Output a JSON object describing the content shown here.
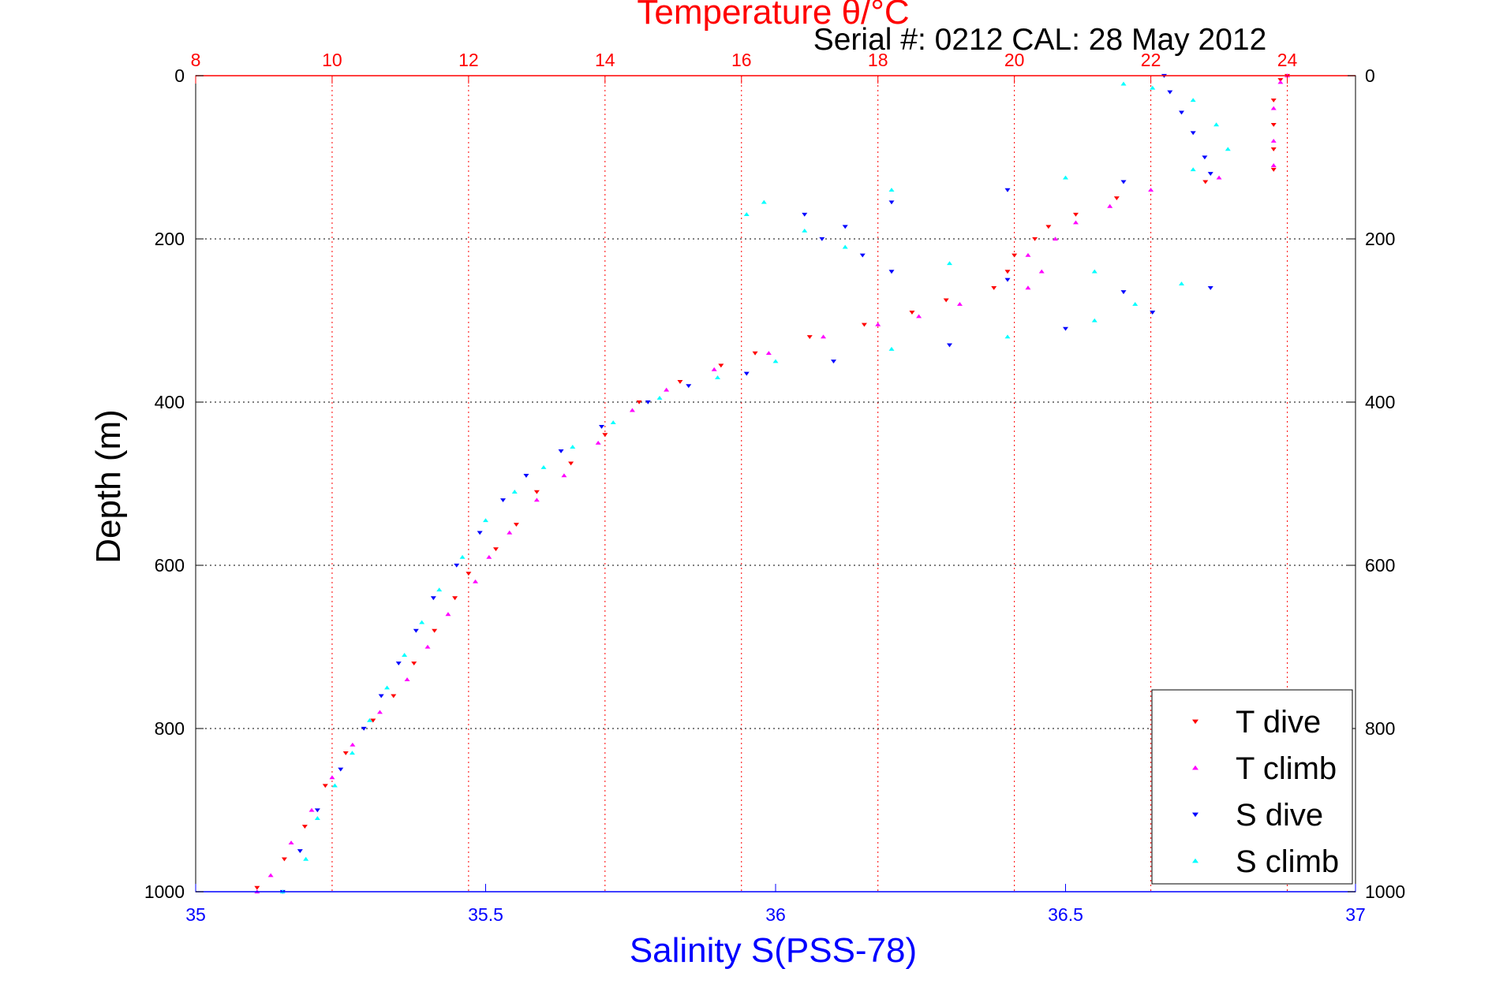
{
  "colors": {
    "temperature_axis": "#ff0000",
    "salinity_axis": "#0000ff",
    "depth_axis": "#000000",
    "t_dive": "#ff0000",
    "t_climb": "#ff00ff",
    "s_dive": "#0000ff",
    "s_climb": "#00ffff",
    "temperature_grid": "#ff0000",
    "depth_grid": "#000000"
  },
  "chart_data": {
    "type": "scatter",
    "title": "Temperature θ/°C",
    "annotation": "Serial #: 0212  CAL: 28 May 2012",
    "xlabel": "Salinity S(PSS-78)",
    "ylabel": "Depth (m)",
    "top_axis": {
      "label": "Temperature θ/°C",
      "range": [
        8,
        25
      ],
      "ticks": [
        8,
        10,
        12,
        14,
        16,
        18,
        20,
        22,
        24
      ]
    },
    "bottom_axis": {
      "label": "Salinity S(PSS-78)",
      "range": [
        35,
        37
      ],
      "ticks": [
        35,
        35.5,
        36,
        36.5,
        37
      ]
    },
    "y_axis": {
      "label": "Depth (m)",
      "range": [
        0,
        1000
      ],
      "reversed": true,
      "ticks": [
        0,
        200,
        400,
        600,
        800,
        1000
      ]
    },
    "grid": {
      "vertical": "temperature ticks (dotted red)",
      "horizontal": "depth ticks (dotted black)"
    },
    "legend": {
      "placement": "bottom-right",
      "entries": [
        "T dive",
        "T climb",
        "S dive",
        "S climb"
      ]
    },
    "series": [
      {
        "name": "T dive",
        "axis": "temperature",
        "marker": "triangle-down",
        "points": [
          [
            24.0,
            0
          ],
          [
            23.9,
            5
          ],
          [
            23.8,
            30
          ],
          [
            23.8,
            60
          ],
          [
            23.8,
            90
          ],
          [
            23.8,
            115
          ],
          [
            22.8,
            130
          ],
          [
            21.5,
            150
          ],
          [
            20.9,
            170
          ],
          [
            20.5,
            185
          ],
          [
            20.3,
            200
          ],
          [
            20.0,
            220
          ],
          [
            19.9,
            240
          ],
          [
            19.7,
            260
          ],
          [
            19.0,
            275
          ],
          [
            18.5,
            290
          ],
          [
            17.8,
            305
          ],
          [
            17.0,
            320
          ],
          [
            16.2,
            340
          ],
          [
            15.7,
            355
          ],
          [
            15.1,
            375
          ],
          [
            14.5,
            400
          ],
          [
            14.0,
            440
          ],
          [
            13.5,
            475
          ],
          [
            13.0,
            510
          ],
          [
            12.7,
            550
          ],
          [
            12.4,
            580
          ],
          [
            12.0,
            610
          ],
          [
            11.8,
            640
          ],
          [
            11.5,
            680
          ],
          [
            11.2,
            720
          ],
          [
            10.9,
            760
          ],
          [
            10.6,
            790
          ],
          [
            10.2,
            830
          ],
          [
            9.9,
            870
          ],
          [
            9.6,
            920
          ],
          [
            9.3,
            960
          ],
          [
            8.9,
            995
          ]
        ]
      },
      {
        "name": "T climb",
        "axis": "temperature",
        "marker": "triangle-up",
        "points": [
          [
            24.0,
            0
          ],
          [
            23.9,
            8
          ],
          [
            23.8,
            40
          ],
          [
            23.8,
            80
          ],
          [
            23.8,
            110
          ],
          [
            23.0,
            125
          ],
          [
            22.0,
            140
          ],
          [
            21.4,
            160
          ],
          [
            20.9,
            180
          ],
          [
            20.6,
            200
          ],
          [
            20.2,
            220
          ],
          [
            20.4,
            240
          ],
          [
            20.2,
            260
          ],
          [
            19.2,
            280
          ],
          [
            18.6,
            295
          ],
          [
            18.0,
            305
          ],
          [
            17.2,
            320
          ],
          [
            16.4,
            340
          ],
          [
            15.6,
            360
          ],
          [
            14.9,
            385
          ],
          [
            14.4,
            410
          ],
          [
            13.9,
            450
          ],
          [
            13.4,
            490
          ],
          [
            13.0,
            520
          ],
          [
            12.6,
            560
          ],
          [
            12.3,
            590
          ],
          [
            12.1,
            620
          ],
          [
            11.7,
            660
          ],
          [
            11.4,
            700
          ],
          [
            11.1,
            740
          ],
          [
            10.7,
            780
          ],
          [
            10.3,
            820
          ],
          [
            10.0,
            860
          ],
          [
            9.7,
            900
          ],
          [
            9.4,
            940
          ],
          [
            9.1,
            980
          ],
          [
            8.9,
            1000
          ]
        ]
      },
      {
        "name": "S dive",
        "axis": "salinity",
        "marker": "triangle-down",
        "points": [
          [
            36.67,
            0
          ],
          [
            36.68,
            20
          ],
          [
            36.7,
            45
          ],
          [
            36.72,
            70
          ],
          [
            36.74,
            100
          ],
          [
            36.75,
            120
          ],
          [
            36.6,
            130
          ],
          [
            36.4,
            140
          ],
          [
            36.2,
            155
          ],
          [
            36.05,
            170
          ],
          [
            36.12,
            185
          ],
          [
            36.08,
            200
          ],
          [
            36.15,
            220
          ],
          [
            36.2,
            240
          ],
          [
            36.4,
            250
          ],
          [
            36.6,
            265
          ],
          [
            36.75,
            260
          ],
          [
            36.65,
            290
          ],
          [
            36.5,
            310
          ],
          [
            36.3,
            330
          ],
          [
            36.1,
            350
          ],
          [
            35.95,
            365
          ],
          [
            35.85,
            380
          ],
          [
            35.78,
            400
          ],
          [
            35.7,
            430
          ],
          [
            35.63,
            460
          ],
          [
            35.57,
            490
          ],
          [
            35.53,
            520
          ],
          [
            35.49,
            560
          ],
          [
            35.45,
            600
          ],
          [
            35.41,
            640
          ],
          [
            35.38,
            680
          ],
          [
            35.35,
            720
          ],
          [
            35.32,
            760
          ],
          [
            35.29,
            800
          ],
          [
            35.25,
            850
          ],
          [
            35.21,
            900
          ],
          [
            35.18,
            950
          ],
          [
            35.15,
            1000
          ]
        ]
      },
      {
        "name": "S climb",
        "axis": "salinity",
        "marker": "triangle-up",
        "points": [
          [
            36.65,
            15
          ],
          [
            36.6,
            10
          ],
          [
            36.72,
            30
          ],
          [
            36.76,
            60
          ],
          [
            36.78,
            90
          ],
          [
            36.72,
            115
          ],
          [
            36.5,
            125
          ],
          [
            36.2,
            140
          ],
          [
            35.98,
            155
          ],
          [
            35.95,
            170
          ],
          [
            36.05,
            190
          ],
          [
            36.12,
            210
          ],
          [
            36.3,
            230
          ],
          [
            36.55,
            240
          ],
          [
            36.7,
            255
          ],
          [
            36.62,
            280
          ],
          [
            36.55,
            300
          ],
          [
            36.4,
            320
          ],
          [
            36.2,
            335
          ],
          [
            36.0,
            350
          ],
          [
            35.9,
            370
          ],
          [
            35.8,
            395
          ],
          [
            35.72,
            425
          ],
          [
            35.65,
            455
          ],
          [
            35.6,
            480
          ],
          [
            35.55,
            510
          ],
          [
            35.5,
            545
          ],
          [
            35.46,
            590
          ],
          [
            35.42,
            630
          ],
          [
            35.39,
            670
          ],
          [
            35.36,
            710
          ],
          [
            35.33,
            750
          ],
          [
            35.3,
            790
          ],
          [
            35.27,
            830
          ],
          [
            35.24,
            870
          ],
          [
            35.21,
            910
          ],
          [
            35.19,
            960
          ],
          [
            35.15,
            1000
          ]
        ]
      }
    ]
  }
}
